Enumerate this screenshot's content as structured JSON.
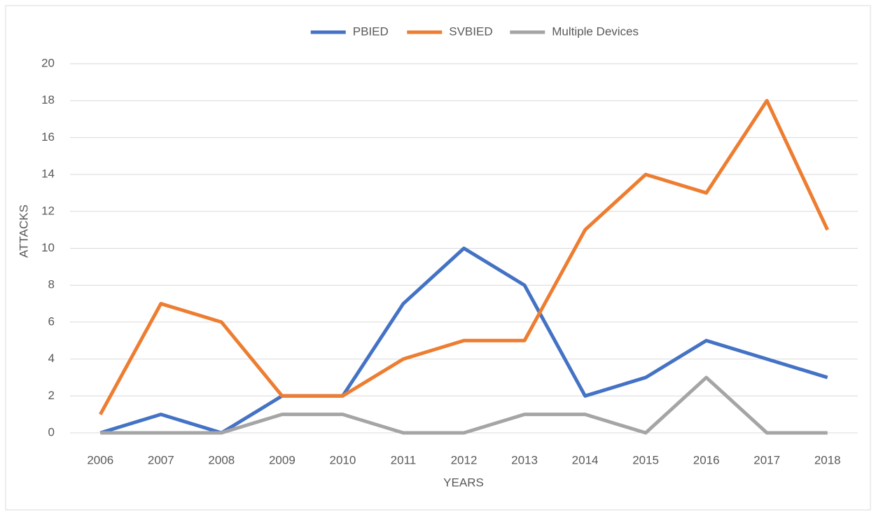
{
  "chart_data": {
    "type": "line",
    "categories": [
      "2006",
      "2007",
      "2008",
      "2009",
      "2010",
      "2011",
      "2012",
      "2013",
      "2014",
      "2015",
      "2016",
      "2017",
      "2018"
    ],
    "series": [
      {
        "name": "PBIED",
        "color": "#4472c4",
        "values": [
          0,
          1,
          0,
          2,
          2,
          7,
          10,
          8,
          2,
          3,
          5,
          4,
          3
        ]
      },
      {
        "name": "SVBIED",
        "color": "#ed7d31",
        "values": [
          1,
          7,
          6,
          2,
          2,
          4,
          5,
          5,
          11,
          14,
          13,
          18,
          11
        ]
      },
      {
        "name": "Multiple Devices",
        "color": "#a5a5a5",
        "values": [
          0,
          0,
          0,
          1,
          1,
          0,
          0,
          1,
          1,
          0,
          3,
          0,
          0
        ]
      }
    ],
    "ylim": [
      0,
      20
    ],
    "yticks": [
      0,
      2,
      4,
      6,
      8,
      10,
      12,
      14,
      16,
      18,
      20
    ],
    "y_label": "ATTACKS",
    "x_label": "YEARS",
    "grid": true,
    "legend": "top"
  }
}
